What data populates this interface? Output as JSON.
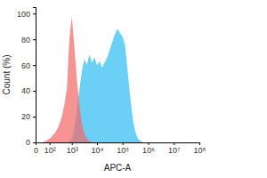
{
  "chart_data": {
    "type": "area",
    "x_label": "APC-A",
    "y_label": "Count (%)",
    "log": "x",
    "x": [
      32,
      40,
      50,
      63,
      79,
      100,
      126,
      158,
      200,
      251,
      316,
      398,
      501,
      631,
      794,
      1000,
      1259,
      1585,
      1995,
      2512,
      3162,
      3981,
      5012,
      6310,
      7943,
      10000,
      12589,
      15849,
      19953,
      25119,
      31623,
      39811,
      50119,
      63096,
      79433,
      100000,
      125893,
      158489,
      199526,
      251189,
      316228,
      398107,
      501187,
      630957,
      794328,
      1000000
    ],
    "series": [
      {
        "color": "#6ccff6",
        "values": [
          0,
          0,
          0,
          0,
          0,
          0,
          0,
          0,
          0,
          0,
          0,
          0,
          0,
          0,
          1,
          3,
          10,
          25,
          40,
          55,
          65,
          60,
          68,
          62,
          66,
          60,
          63,
          58,
          62,
          66,
          72,
          78,
          84,
          88,
          85,
          82,
          75,
          55,
          35,
          18,
          8,
          3,
          1,
          0,
          0,
          0
        ]
      },
      {
        "color": "#f26b6b",
        "values": [
          0,
          0,
          1,
          1,
          2,
          3,
          4,
          6,
          8,
          11,
          15,
          21,
          30,
          42,
          80,
          98,
          75,
          50,
          30,
          15,
          7,
          3,
          1,
          0,
          0,
          0,
          0,
          0,
          0,
          0,
          0,
          0,
          0,
          0,
          0,
          0,
          0,
          0,
          0,
          0,
          0,
          0,
          0,
          0,
          0,
          0
        ]
      }
    ],
    "xlim": [
      0,
      100000000
    ],
    "xticks": [
      0,
      {
        "value": 100,
        "label": "10²"
      },
      {
        "value": 1000,
        "label": "10³"
      },
      {
        "value": 10000,
        "label": "10⁴"
      },
      {
        "value": 100000,
        "label": "10⁵"
      },
      {
        "value": 1000000,
        "label": "10⁶"
      },
      {
        "value": 10000000,
        "label": "10⁷"
      },
      {
        "value": 100000000,
        "label": "10⁸"
      }
    ],
    "ylim": [
      0,
      105
    ],
    "yticks": [
      0,
      20,
      40,
      60,
      80,
      100
    ]
  }
}
